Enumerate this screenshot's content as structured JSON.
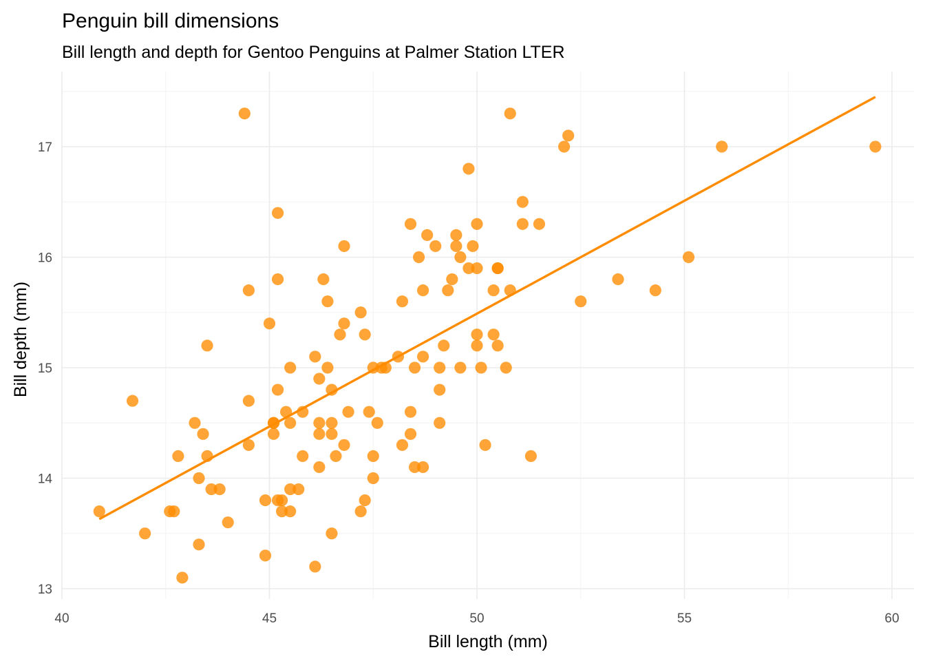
{
  "chart_data": {
    "type": "scatter",
    "title": "Penguin bill dimensions",
    "subtitle": "Bill length and depth for Gentoo Penguins at Palmer Station LTER",
    "xlabel": "Bill length (mm)",
    "ylabel": "Bill depth (mm)",
    "xlim": [
      40,
      60
    ],
    "ylim": [
      13,
      17.5
    ],
    "x_ticks": [
      "40",
      "45",
      "50",
      "55",
      "60"
    ],
    "y_ticks": [
      "13",
      "14",
      "15",
      "16",
      "17"
    ],
    "grid": true,
    "legend": "none",
    "point_color": "#ff8c00",
    "trend_color": "#ff8c00",
    "trend_line": {
      "type": "linear fit",
      "start": [
        40.9,
        13.63
      ],
      "end": [
        59.6,
        17.45
      ]
    },
    "series": [
      {
        "points": [
          [
            40.9,
            13.7
          ],
          [
            41.7,
            14.7
          ],
          [
            42.0,
            13.5
          ],
          [
            42.6,
            13.7
          ],
          [
            42.7,
            13.7
          ],
          [
            42.8,
            14.2
          ],
          [
            42.9,
            13.1
          ],
          [
            43.2,
            14.5
          ],
          [
            43.3,
            14.0
          ],
          [
            43.3,
            13.4
          ],
          [
            43.4,
            14.4
          ],
          [
            43.5,
            15.2
          ],
          [
            43.5,
            14.2
          ],
          [
            43.6,
            13.9
          ],
          [
            43.8,
            13.9
          ],
          [
            44.0,
            13.6
          ],
          [
            44.4,
            17.3
          ],
          [
            44.5,
            15.7
          ],
          [
            44.5,
            14.7
          ],
          [
            44.5,
            14.3
          ],
          [
            44.9,
            13.8
          ],
          [
            44.9,
            13.3
          ],
          [
            45.0,
            15.4
          ],
          [
            45.1,
            14.5
          ],
          [
            45.1,
            14.5
          ],
          [
            45.1,
            14.4
          ],
          [
            45.2,
            16.4
          ],
          [
            45.2,
            15.8
          ],
          [
            45.2,
            14.8
          ],
          [
            45.2,
            13.8
          ],
          [
            45.3,
            13.8
          ],
          [
            45.3,
            13.7
          ],
          [
            45.4,
            14.6
          ],
          [
            45.5,
            15.0
          ],
          [
            45.5,
            14.5
          ],
          [
            45.5,
            13.9
          ],
          [
            45.5,
            13.7
          ],
          [
            45.7,
            13.9
          ],
          [
            45.8,
            14.6
          ],
          [
            45.8,
            14.2
          ],
          [
            46.1,
            15.1
          ],
          [
            46.1,
            13.2
          ],
          [
            46.2,
            14.9
          ],
          [
            46.2,
            14.5
          ],
          [
            46.2,
            14.4
          ],
          [
            46.2,
            14.1
          ],
          [
            46.3,
            15.8
          ],
          [
            46.4,
            15.6
          ],
          [
            46.4,
            15.0
          ],
          [
            46.5,
            14.8
          ],
          [
            46.5,
            14.5
          ],
          [
            46.5,
            14.4
          ],
          [
            46.5,
            13.5
          ],
          [
            46.6,
            14.2
          ],
          [
            46.7,
            15.3
          ],
          [
            46.8,
            16.1
          ],
          [
            46.8,
            15.4
          ],
          [
            46.8,
            14.3
          ],
          [
            46.9,
            14.6
          ],
          [
            47.2,
            15.5
          ],
          [
            47.2,
            13.7
          ],
          [
            47.3,
            15.3
          ],
          [
            47.3,
            13.8
          ],
          [
            47.4,
            14.6
          ],
          [
            47.5,
            15.0
          ],
          [
            47.5,
            14.2
          ],
          [
            47.5,
            14.0
          ],
          [
            47.6,
            14.5
          ],
          [
            47.7,
            15.0
          ],
          [
            47.8,
            15.0
          ],
          [
            48.1,
            15.1
          ],
          [
            48.2,
            15.6
          ],
          [
            48.2,
            14.3
          ],
          [
            48.4,
            16.3
          ],
          [
            48.4,
            14.6
          ],
          [
            48.4,
            14.4
          ],
          [
            48.5,
            15.0
          ],
          [
            48.5,
            14.1
          ],
          [
            48.6,
            16.0
          ],
          [
            48.7,
            15.7
          ],
          [
            48.7,
            15.1
          ],
          [
            48.7,
            14.1
          ],
          [
            48.8,
            16.2
          ],
          [
            49.0,
            16.1
          ],
          [
            49.1,
            15.0
          ],
          [
            49.1,
            14.8
          ],
          [
            49.1,
            14.5
          ],
          [
            49.2,
            15.2
          ],
          [
            49.3,
            15.7
          ],
          [
            49.4,
            15.8
          ],
          [
            49.5,
            16.2
          ],
          [
            49.5,
            16.1
          ],
          [
            49.6,
            16.0
          ],
          [
            49.6,
            15.0
          ],
          [
            49.8,
            16.8
          ],
          [
            49.8,
            15.9
          ],
          [
            49.9,
            16.1
          ],
          [
            50.0,
            16.3
          ],
          [
            50.0,
            15.9
          ],
          [
            50.0,
            15.3
          ],
          [
            50.0,
            15.2
          ],
          [
            50.1,
            15.0
          ],
          [
            50.2,
            14.3
          ],
          [
            50.4,
            15.7
          ],
          [
            50.4,
            15.3
          ],
          [
            50.5,
            15.9
          ],
          [
            50.5,
            15.9
          ],
          [
            50.5,
            15.2
          ],
          [
            50.7,
            15.0
          ],
          [
            50.8,
            17.3
          ],
          [
            50.8,
            15.7
          ],
          [
            51.1,
            16.5
          ],
          [
            51.1,
            16.3
          ],
          [
            51.3,
            14.2
          ],
          [
            51.5,
            16.3
          ],
          [
            52.1,
            17.0
          ],
          [
            52.2,
            17.1
          ],
          [
            52.5,
            15.6
          ],
          [
            53.4,
            15.8
          ],
          [
            54.3,
            15.7
          ],
          [
            55.1,
            16.0
          ],
          [
            55.9,
            17.0
          ],
          [
            59.6,
            17.0
          ]
        ]
      }
    ]
  }
}
